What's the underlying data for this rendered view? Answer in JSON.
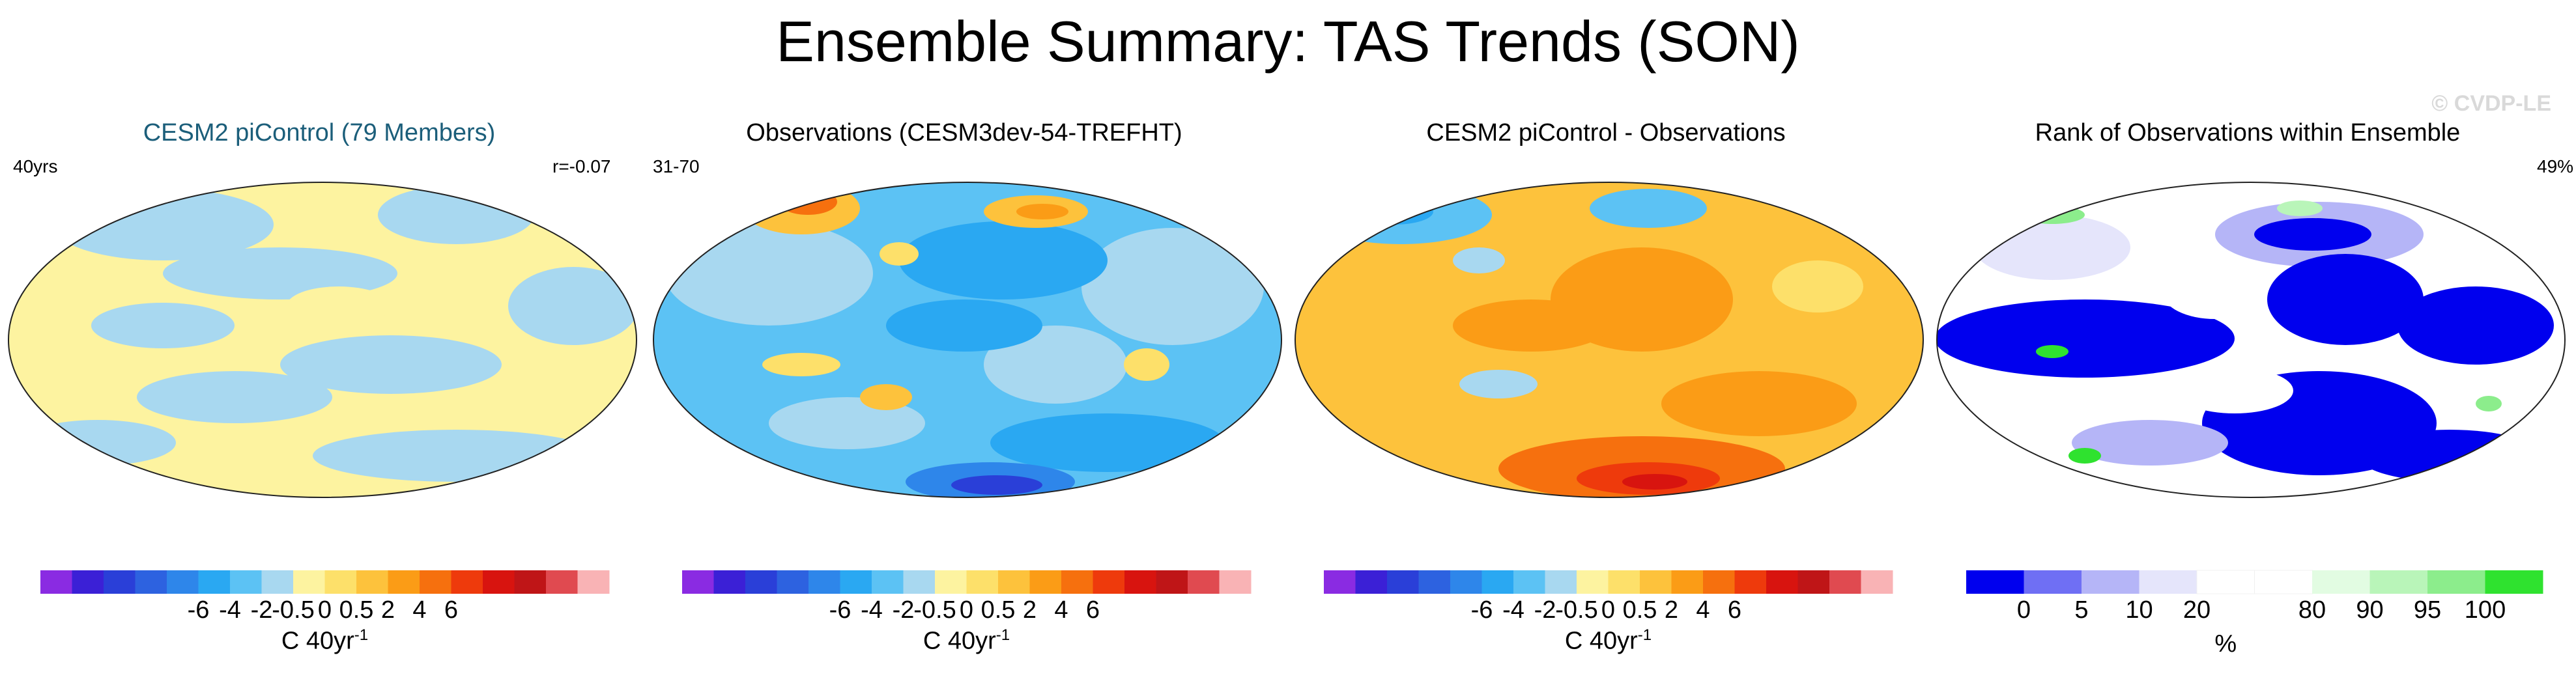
{
  "title": "Ensemble Summary: TAS Trends (SON)",
  "watermark": "© CVDP-LE",
  "panels": [
    {
      "title": "CESM2 piControl (79 Members)",
      "title_color": "#1b5e7a",
      "left_note": "40yrs",
      "right_note": "r=-0.07"
    },
    {
      "title": "Observations (CESM3dev-54-TREFHT)",
      "title_color": "#000000",
      "left_note": "31-70",
      "right_note": ""
    },
    {
      "title": "CESM2 piControl - Observations",
      "title_color": "#000000",
      "left_note": "",
      "right_note": ""
    },
    {
      "title": "Rank of Observations within Ensemble",
      "title_color": "#000000",
      "left_note": "",
      "right_note": "49%"
    }
  ],
  "colorbar_trend": {
    "colors": [
      "#8a2be2",
      "#3b20d6",
      "#2a3fd8",
      "#2d62e0",
      "#2e86ea",
      "#2aa8f2",
      "#5cc2f4",
      "#a8d8f0",
      "#fdf3a0",
      "#fde06a",
      "#fdc23c",
      "#fb9c16",
      "#f6700e",
      "#ee3a0c",
      "#d8140f",
      "#bf1517",
      "#e04a50",
      "#f9b3b5"
    ],
    "tick_labels": [
      "-6",
      "-4",
      "-2",
      "-0.5",
      "0",
      "0.5",
      "2",
      "4",
      "6"
    ],
    "unit_base": "C 40yr",
    "unit_exp": "-1"
  },
  "colorbar_rank": {
    "colors": [
      "#0000ee",
      "#6f6ff4",
      "#b5b5f7",
      "#e5e5fb",
      "#ffffff",
      "#ffffff",
      "#e2fce2",
      "#b9f5b9",
      "#8ced8c",
      "#2fe22f"
    ],
    "tick_labels": [
      "0",
      "5",
      "10",
      "20",
      "80",
      "90",
      "95",
      "100"
    ],
    "unit_label": "%"
  },
  "chart_data": [
    {
      "type": "heatmap",
      "title": "CESM2 piControl (79 Members)",
      "projection": "robinson",
      "annotations": [
        "40yrs",
        "r=-0.07"
      ],
      "unit": "C 40yr-1",
      "levels": [
        -6,
        -4,
        -2,
        -0.5,
        0,
        0.5,
        2,
        4,
        6
      ],
      "dominant_range": [
        -0.5,
        0.5
      ]
    },
    {
      "type": "heatmap",
      "title": "Observations (CESM3dev-54-TREFHT)",
      "projection": "robinson",
      "annotations": [
        "31-70"
      ],
      "unit": "C 40yr-1",
      "levels": [
        -6,
        -4,
        -2,
        -0.5,
        0,
        0.5,
        2,
        4,
        6
      ],
      "dominant_range": [
        -2,
        -0.5
      ],
      "min_region": "Southern Ocean",
      "min_value": -4
    },
    {
      "type": "heatmap",
      "title": "CESM2 piControl - Observations",
      "projection": "robinson",
      "unit": "C 40yr-1",
      "levels": [
        -6,
        -4,
        -2,
        -0.5,
        0,
        0.5,
        2,
        4,
        6
      ],
      "dominant_range": [
        0.5,
        2
      ],
      "max_region": "Southern Ocean",
      "max_value": 4
    },
    {
      "type": "heatmap",
      "title": "Rank of Observations within Ensemble",
      "projection": "robinson",
      "annotations": [
        "49%"
      ],
      "unit": "%",
      "levels": [
        0,
        5,
        10,
        20,
        80,
        90,
        95,
        100
      ]
    }
  ]
}
